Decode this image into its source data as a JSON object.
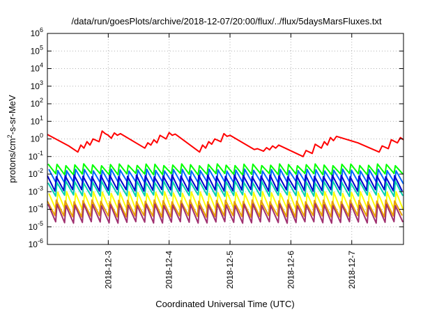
{
  "chart_data": {
    "type": "line",
    "title": "/data/run/goesPlots/archive/2018-12-07/20:00/flux/../flux/5daysMarsFluxes.txt",
    "xlabel": "Coordinated Universal Time (UTC)",
    "ylabel_main": "protons/cm",
    "ylabel_sup": "2",
    "ylabel_rest": "-s-sr-MeV",
    "yscale": "log",
    "ylim_exp": [
      -6,
      6
    ],
    "y_ticks": [
      {
        "base": "10",
        "exp": "-6",
        "value_exp": -6
      },
      {
        "base": "10",
        "exp": "-5",
        "value_exp": -5
      },
      {
        "base": "10",
        "exp": "-4",
        "value_exp": -4
      },
      {
        "base": "10",
        "exp": "-3",
        "value_exp": -3
      },
      {
        "base": "10",
        "exp": "-2",
        "value_exp": -2
      },
      {
        "base": "10",
        "exp": "-1",
        "value_exp": -1
      },
      {
        "base": "10",
        "exp": "0",
        "value_exp": 0
      },
      {
        "base": "10",
        "exp": "1",
        "value_exp": 1
      },
      {
        "base": "10",
        "exp": "2",
        "value_exp": 2
      },
      {
        "base": "10",
        "exp": "3",
        "value_exp": 3
      },
      {
        "base": "10",
        "exp": "4",
        "value_exp": 4
      },
      {
        "base": "10",
        "exp": "5",
        "value_exp": 5
      },
      {
        "base": "10",
        "exp": "6",
        "value_exp": 6
      }
    ],
    "xlim_days": [
      2.0,
      7.85
    ],
    "x_ticks": [
      {
        "label": "2018-12-3",
        "day": 3
      },
      {
        "label": "2018-12-4",
        "day": 4
      },
      {
        "label": "2018-12-5",
        "day": 5
      },
      {
        "label": "2018-12-6",
        "day": 6
      },
      {
        "label": "2018-12-7",
        "day": 7
      }
    ],
    "grid": true,
    "legend": "none",
    "series": [
      {
        "color": "#ff0000",
        "x_days": [
          2.0,
          2.35,
          2.5,
          2.55,
          2.6,
          2.65,
          2.7,
          2.75,
          2.85,
          2.9,
          2.95,
          3.0,
          3.05,
          3.1,
          3.15,
          3.2,
          3.6,
          3.65,
          3.7,
          3.75,
          3.8,
          3.85,
          3.95,
          4.0,
          4.05,
          4.1,
          4.5,
          4.55,
          4.6,
          4.65,
          4.7,
          4.75,
          4.85,
          4.9,
          4.95,
          5.0,
          5.4,
          5.45,
          5.55,
          5.6,
          5.65,
          5.7,
          5.75,
          5.8,
          6.2,
          6.25,
          6.35,
          6.4,
          6.5,
          6.55,
          6.6,
          6.65,
          6.7,
          6.75,
          7.1,
          7.3,
          7.45,
          7.5,
          7.6,
          7.65,
          7.75,
          7.8,
          7.85
        ],
        "y": [
          1.8,
          0.4,
          0.18,
          0.45,
          0.3,
          0.7,
          0.45,
          1.0,
          0.7,
          2.8,
          2.0,
          1.6,
          1.1,
          2.2,
          1.6,
          2.0,
          0.3,
          0.6,
          0.45,
          0.9,
          0.6,
          1.6,
          1.0,
          2.3,
          1.6,
          1.9,
          0.18,
          0.45,
          0.3,
          0.7,
          0.5,
          1.0,
          0.7,
          2.0,
          1.4,
          1.6,
          0.25,
          0.28,
          0.2,
          0.32,
          0.24,
          0.4,
          0.3,
          0.45,
          0.1,
          0.22,
          0.15,
          0.5,
          0.3,
          0.7,
          0.45,
          1.2,
          0.8,
          1.4,
          0.6,
          0.3,
          0.18,
          0.4,
          0.28,
          0.9,
          0.6,
          1.2,
          0.9
        ]
      },
      {
        "color": "#00ff00",
        "band": [
          0.01,
          0.034
        ],
        "teeth": 40
      },
      {
        "color": "#0066ff",
        "band": [
          0.003,
          0.017
        ],
        "teeth": 40
      },
      {
        "color": "#0000cc",
        "band": [
          0.0012,
          0.008
        ],
        "teeth": 40
      },
      {
        "color": "#00d0b0",
        "band": [
          0.0006,
          0.0035
        ],
        "teeth": 40
      },
      {
        "color": "#ffff00",
        "band": [
          8e-05,
          0.0009
        ],
        "teeth": 40
      },
      {
        "color": "#e8a000",
        "band": [
          4e-05,
          0.0003
        ],
        "teeth": 40
      },
      {
        "color": "#a03070",
        "band": [
          1.8e-05,
          0.00018
        ],
        "teeth": 40
      }
    ]
  }
}
